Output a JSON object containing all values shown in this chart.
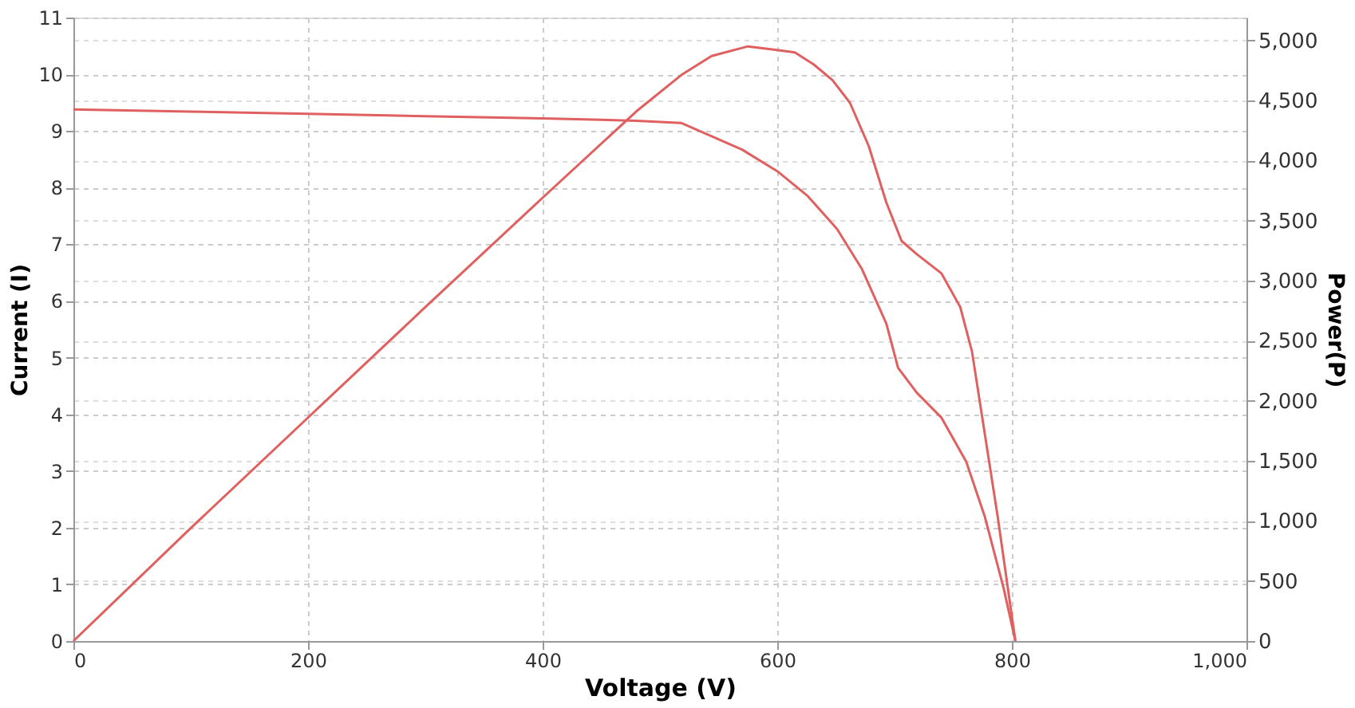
{
  "chart_data": {
    "type": "line",
    "xlabel": "Voltage (V)",
    "ylabel": "Current (I)",
    "y2label": "Power(P)",
    "xlim": [
      0,
      1000
    ],
    "xticks": [
      0,
      200,
      400,
      600,
      800,
      {
        "value": 1000,
        "label": "1,000"
      }
    ],
    "ylim": [
      0,
      11
    ],
    "yticks": [
      0,
      1,
      2,
      3,
      4,
      5,
      6,
      7,
      8,
      9,
      10,
      11
    ],
    "y2lim": [
      0,
      5190
    ],
    "y2ticks": [
      0,
      500,
      {
        "value": 1000,
        "label": "1,000"
      },
      {
        "value": 1500,
        "label": "1,500"
      },
      {
        "value": 2000,
        "label": "2,000"
      },
      {
        "value": 2500,
        "label": "2,500"
      },
      {
        "value": 3000,
        "label": "3,000"
      },
      {
        "value": 3500,
        "label": "3,500"
      },
      {
        "value": 4000,
        "label": "4,000"
      },
      {
        "value": 4500,
        "label": "4,500"
      },
      {
        "value": 5000,
        "label": "5,000"
      }
    ],
    "grid": true,
    "marker": "none",
    "line_style": "solid",
    "series": [
      {
        "color": "#e06060",
        "x": [
          0,
          100,
          200,
          300,
          400,
          480,
          518,
          570,
          600,
          626,
          651,
          672,
          693,
          703,
          719,
          740,
          761,
          777,
          793,
          803
        ],
        "values": [
          9.38,
          9.34,
          9.3,
          9.26,
          9.22,
          9.18,
          9.14,
          8.67,
          8.29,
          7.85,
          7.27,
          6.57,
          5.6,
          4.82,
          4.38,
          3.94,
          3.17,
          2.19,
          0.93,
          0
        ]
      },
      {
        "color": "#e06060",
        "axis": "y2",
        "x": [
          0,
          100,
          200,
          300,
          400,
          480,
          518,
          544,
          575,
          600,
          615,
          631,
          647,
          662,
          678,
          693,
          706,
          719,
          740,
          756,
          766,
          777,
          788,
          803
        ],
        "values": [
          0,
          940,
          1860,
          2780,
          3690,
          4410,
          4710,
          4870,
          4950,
          4920,
          4900,
          4800,
          4670,
          4480,
          4120,
          3650,
          3330,
          3220,
          3060,
          2780,
          2410,
          1720,
          1030,
          0
        ]
      }
    ]
  }
}
